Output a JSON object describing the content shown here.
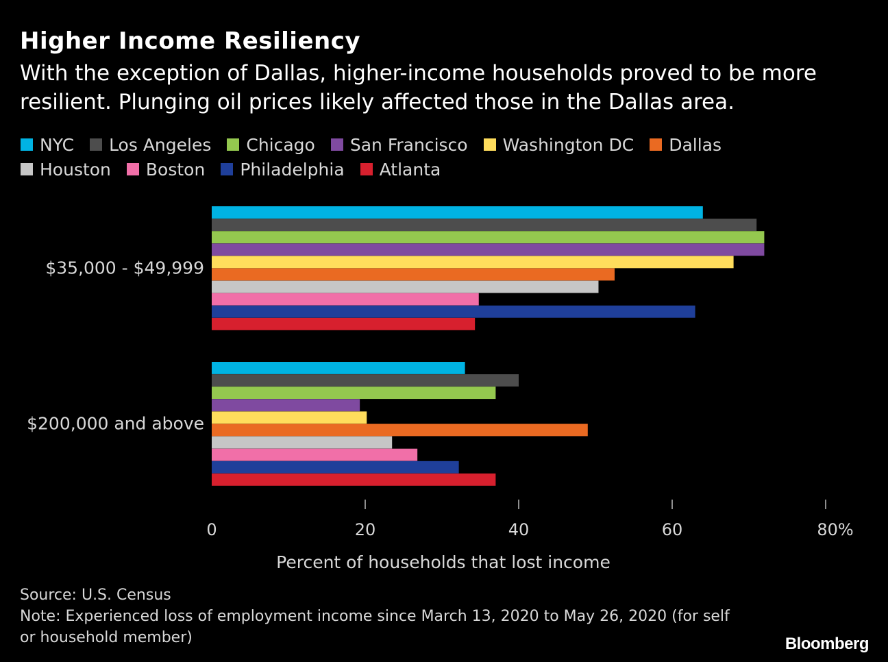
{
  "title": "Higher Income Resiliency",
  "subtitle": "With the exception of Dallas, higher-income households proved to be more resilient. Plunging oil prices likely affected those in the Dallas area.",
  "legend_rows": [
    [
      {
        "name": "NYC",
        "color": "#00b3e3"
      },
      {
        "name": "Los Angeles",
        "color": "#4d4d4d"
      },
      {
        "name": "Chicago",
        "color": "#94c84f"
      },
      {
        "name": "San Francisco",
        "color": "#7f4aa0"
      },
      {
        "name": "Washington DC",
        "color": "#ffdd5c"
      },
      {
        "name": "Dallas",
        "color": "#ea6a22"
      }
    ],
    [
      {
        "name": "Houston",
        "color": "#c6c6c6"
      },
      {
        "name": "Boston",
        "color": "#f16fa8"
      },
      {
        "name": "Philadelphia",
        "color": "#1f3f9a"
      },
      {
        "name": "Atlanta",
        "color": "#d7202e"
      }
    ]
  ],
  "chart_data": {
    "type": "bar",
    "orientation": "horizontal",
    "categories": [
      "$35,000 - $49,999",
      "$200,000 and above"
    ],
    "series": [
      {
        "name": "NYC",
        "color": "#00b3e3",
        "values": [
          64,
          33
        ]
      },
      {
        "name": "Los Angeles",
        "color": "#4d4d4d",
        "values": [
          71,
          40
        ]
      },
      {
        "name": "Chicago",
        "color": "#94c84f",
        "values": [
          72,
          37
        ]
      },
      {
        "name": "San Francisco",
        "color": "#7f4aa0",
        "values": [
          72,
          19.3
        ]
      },
      {
        "name": "Washington DC",
        "color": "#ffdd5c",
        "values": [
          68,
          20.2
        ]
      },
      {
        "name": "Dallas",
        "color": "#ea6a22",
        "values": [
          52.5,
          49
        ]
      },
      {
        "name": "Houston",
        "color": "#c6c6c6",
        "values": [
          50.4,
          23.5
        ]
      },
      {
        "name": "Boston",
        "color": "#f16fa8",
        "values": [
          34.8,
          26.8
        ]
      },
      {
        "name": "Philadelphia",
        "color": "#1f3f9a",
        "values": [
          63,
          32.2
        ]
      },
      {
        "name": "Atlanta",
        "color": "#d7202e",
        "values": [
          34.3,
          37
        ]
      }
    ],
    "xlim": [
      0,
      80
    ],
    "xticks": [
      "0",
      "20",
      "40",
      "60",
      "80%"
    ],
    "xlabel": "Percent of households that lost income",
    "grid": false,
    "legend_position": "top"
  },
  "source": "Source: U.S. Census",
  "note": "Note: Experienced loss of employment income since March 13, 2020 to May 26, 2020 (for self or household member)",
  "brand": "Bloomberg"
}
